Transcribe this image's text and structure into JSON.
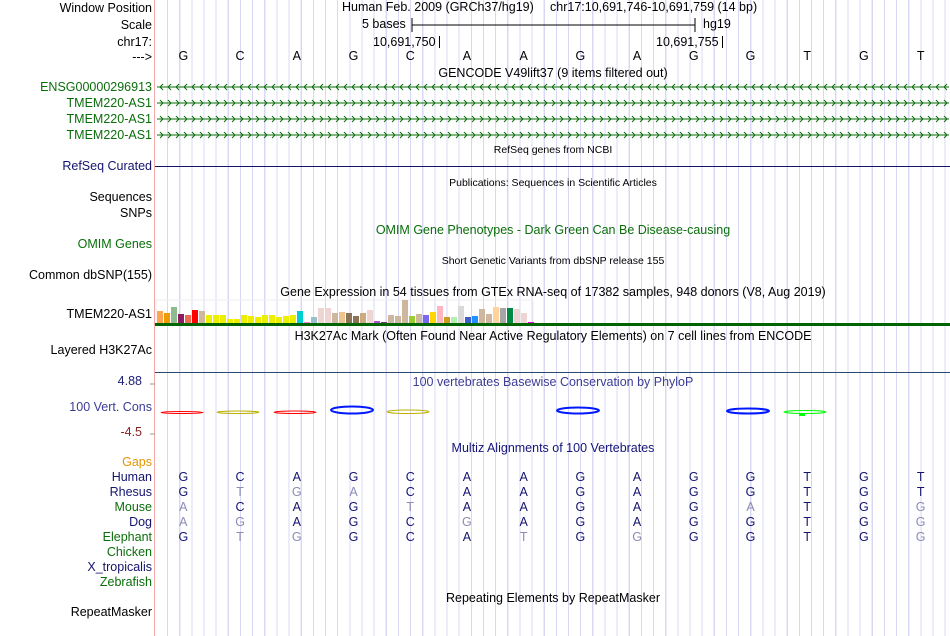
{
  "header": {
    "window_position_label": "Window Position",
    "scale_label": "Scale",
    "chrom_label": "chr17:",
    "strand_label": "--->",
    "assembly": "Human Feb. 2009 (GRCh37/hg19)",
    "position": "chr17:10,691,746-10,691,759 (14 bp)",
    "scale_text": "5 bases",
    "scale_db": "hg19",
    "tick1": "10,691,750",
    "tick2": "10,691,755"
  },
  "sequence": [
    "G",
    "C",
    "A",
    "G",
    "C",
    "A",
    "A",
    "G",
    "A",
    "G",
    "G",
    "T",
    "G",
    "T"
  ],
  "tracks": {
    "gencode": {
      "title": "GENCODE V49lift37 (9 items filtered out)",
      "items": [
        {
          "name": "ENSG00000296913",
          "strand": "-"
        },
        {
          "name": "TMEM220-AS1",
          "strand": "+"
        },
        {
          "name": "TMEM220-AS1",
          "strand": "+"
        },
        {
          "name": "TMEM220-AS1",
          "strand": "+"
        }
      ]
    },
    "refseq": {
      "title": "RefSeq genes from NCBI",
      "label": "RefSeq Curated"
    },
    "publications": {
      "title": "Publications: Sequences in Scientific Articles",
      "labels": [
        "Sequences",
        "SNPs"
      ]
    },
    "omim": {
      "title": "OMIM Gene Phenotypes - Dark Green Can Be Disease-causing",
      "label": "OMIM Genes"
    },
    "dbsnp": {
      "title": "Short Genetic Variants from dbSNP release 155",
      "label": "Common dbSNP(155)"
    },
    "gtex": {
      "title": "Gene Expression in 54 tissues from GTEx RNA-seq of 17382 samples, 948 donors (V8, Aug 2019)",
      "label": "TMEM220-AS1",
      "values": [
        12,
        10,
        16,
        9,
        8,
        13,
        12,
        8,
        8,
        8,
        4,
        4,
        8,
        7,
        6,
        8,
        8,
        6,
        7,
        8,
        12,
        1,
        6,
        15,
        15,
        10,
        11,
        10,
        7,
        10,
        13,
        2,
        1,
        8,
        7,
        23,
        7,
        9,
        8,
        11,
        17,
        6,
        6,
        17,
        6,
        7,
        14,
        9,
        16,
        15,
        15,
        14,
        10,
        1
      ],
      "colors": [
        "#ffa54f",
        "#ee9a00",
        "#8fbc8f",
        "#8b1c62",
        "#ee6a50",
        "#ff0000",
        "#cdb79e",
        "#eeee00",
        "#eeee00",
        "#eeee00",
        "#eeee00",
        "#eeee00",
        "#eeee00",
        "#eeee00",
        "#eeee00",
        "#eeee00",
        "#eeee00",
        "#eeee00",
        "#eeee00",
        "#eeee00",
        "#00ced1",
        "#ee82ee",
        "#9ac0cd",
        "#eed5d2",
        "#eed5d2",
        "#cdb79e",
        "#eec591",
        "#8b7355",
        "#8b7355",
        "#cdaa7d",
        "#eed5d2",
        "#b452cd",
        "#7a378b",
        "#cdb79e",
        "#cdb79e",
        "#cdb79e",
        "#9acd32",
        "#cdb79e",
        "#7b68ee",
        "#ffd700",
        "#ffb6c1",
        "#cd9b1d",
        "#b4eeb4",
        "#d9d9d9",
        "#3a5fcd",
        "#1e90ff",
        "#cdb79e",
        "#cdb79e",
        "#ffd39b",
        "#a6a6a6",
        "#008b45",
        "#eed5d2",
        "#eed5d2",
        "#ee00ee"
      ]
    },
    "h3k27ac": {
      "title": "H3K27Ac Mark (Often Found Near Active Regulatory Elements) on 7 cell lines from ENCODE",
      "label": "Layered H3K27Ac"
    },
    "phylop": {
      "title": "100 vertebrates Basewise Conservation by PhyloP",
      "label": "100 Vert. Cons",
      "max": "4.88",
      "min": "-4.5"
    },
    "multiz": {
      "title": "Multiz Alignments of 100 Vertebrates",
      "gaps_label": "Gaps",
      "species": [
        {
          "name": "Human",
          "color": "navy",
          "bases": "GCAGCAAGAGGTGT",
          "faint": ""
        },
        {
          "name": "Rhesus",
          "color": "navy",
          "bases": "GTGACAAGAGGTGT",
          "faint": "01110000000000"
        },
        {
          "name": "Mouse",
          "color": "green",
          "bases": "ACAGTAAGAGATGG",
          "faint": "10001000001001"
        },
        {
          "name": "Dog",
          "color": "navy",
          "bases": "AGAGCGAGAGGTGG",
          "faint": "11000100000001"
        },
        {
          "name": "Elephant",
          "color": "green",
          "bases": "GTGGCATGGGGTGG",
          "faint": "01100010100001"
        },
        {
          "name": "Chicken",
          "color": "green",
          "bases": "",
          "faint": ""
        },
        {
          "name": "X_tropicalis",
          "color": "navy",
          "bases": "",
          "faint": ""
        },
        {
          "name": "Zebrafish",
          "color": "green",
          "bases": "",
          "faint": ""
        }
      ]
    },
    "repeatmasker": {
      "title": "Repeating Elements by RepeatMasker",
      "label": "RepeatMasker"
    }
  }
}
